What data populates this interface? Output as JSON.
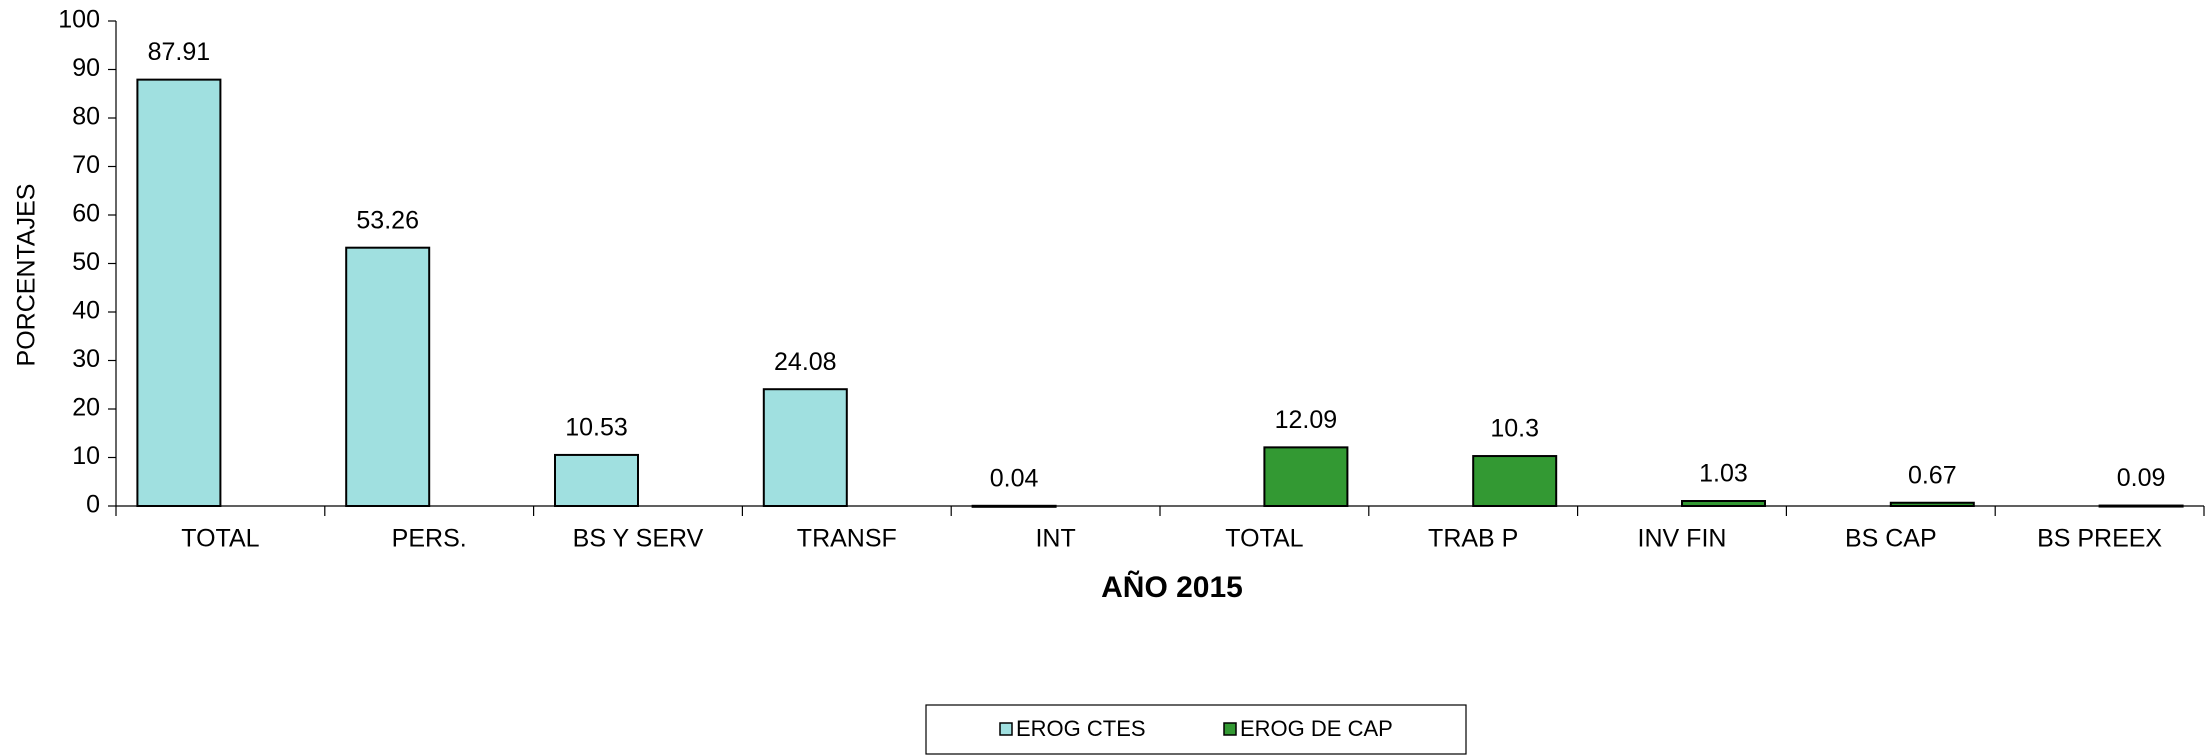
{
  "chart_data": {
    "type": "bar",
    "x_label": "AÑO 2015",
    "y_label": "PORCENTAJES",
    "categories": [
      "TOTAL",
      "PERS.",
      "BS Y SERV",
      "TRANSF",
      "INT",
      "TOTAL",
      "TRAB P",
      "INV FIN",
      "BS CAP",
      "BS PREEX"
    ],
    "series": [
      {
        "name": "EROG CTES",
        "color": "#a0e0e0",
        "values": [
          87.91,
          53.26,
          10.53,
          24.08,
          0.04,
          null,
          null,
          null,
          null,
          null
        ]
      },
      {
        "name": "EROG DE CAP",
        "color": "#339933",
        "values": [
          null,
          null,
          null,
          null,
          null,
          12.09,
          10.3,
          1.03,
          0.67,
          0.09
        ]
      }
    ],
    "ylim": [
      0,
      100
    ],
    "yticks": [
      0,
      10,
      20,
      30,
      40,
      50,
      60,
      70,
      80,
      90,
      100
    ],
    "legend": "bottom"
  }
}
